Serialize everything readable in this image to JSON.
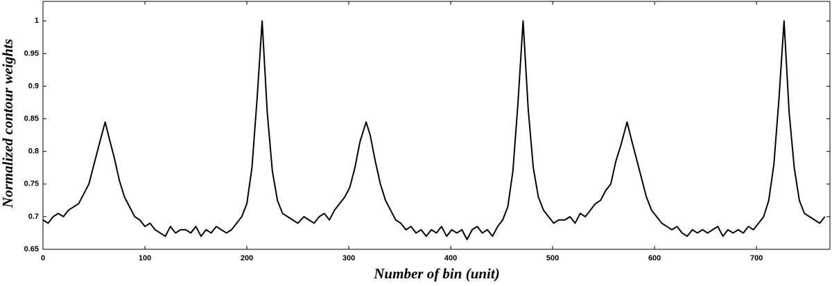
{
  "chart_data": {
    "type": "line",
    "x_label": "Number of bin (unit)",
    "y_label": "Normalized contour weights",
    "x": [
      0,
      5,
      10,
      15,
      20,
      25,
      30,
      35,
      40,
      45,
      50,
      55,
      61,
      65,
      70,
      75,
      80,
      85,
      90,
      95,
      100,
      105,
      110,
      115,
      120,
      125,
      130,
      135,
      140,
      145,
      150,
      155,
      160,
      165,
      170,
      175,
      180,
      185,
      190,
      195,
      200,
      205,
      210,
      215,
      220,
      225,
      230,
      235,
      240,
      245,
      250,
      256,
      261,
      266,
      271,
      276,
      281,
      286,
      291,
      296,
      301,
      306,
      311,
      317,
      321,
      326,
      331,
      336,
      341,
      346,
      351,
      356,
      361,
      366,
      371,
      376,
      381,
      386,
      391,
      396,
      401,
      406,
      411,
      416,
      421,
      426,
      431,
      436,
      441,
      446,
      451,
      456,
      461,
      466,
      471,
      476,
      481,
      486,
      491,
      496,
      501,
      506,
      512,
      517,
      522,
      527,
      532,
      537,
      542,
      547,
      552,
      557,
      562,
      567,
      573,
      577,
      582,
      587,
      592,
      597,
      602,
      607,
      612,
      617,
      622,
      627,
      632,
      637,
      642,
      647,
      652,
      657,
      662,
      667,
      672,
      677,
      682,
      687,
      692,
      697,
      702,
      707,
      712,
      717,
      722,
      727,
      732,
      737,
      742,
      747,
      752,
      757,
      762,
      767
    ],
    "series": [
      {
        "color": "#000000",
        "values": [
          0.695,
          0.69,
          0.7,
          0.705,
          0.7,
          0.71,
          0.715,
          0.72,
          0.735,
          0.75,
          0.78,
          0.81,
          0.845,
          0.82,
          0.79,
          0.755,
          0.73,
          0.715,
          0.7,
          0.695,
          0.685,
          0.69,
          0.68,
          0.675,
          0.67,
          0.685,
          0.675,
          0.68,
          0.68,
          0.675,
          0.685,
          0.67,
          0.68,
          0.675,
          0.685,
          0.68,
          0.675,
          0.68,
          0.69,
          0.7,
          0.72,
          0.775,
          0.88,
          1.0,
          0.86,
          0.77,
          0.725,
          0.705,
          0.7,
          0.695,
          0.69,
          0.7,
          0.695,
          0.69,
          0.7,
          0.705,
          0.695,
          0.71,
          0.72,
          0.73,
          0.745,
          0.775,
          0.815,
          0.845,
          0.825,
          0.785,
          0.75,
          0.725,
          0.71,
          0.695,
          0.69,
          0.68,
          0.685,
          0.675,
          0.68,
          0.67,
          0.68,
          0.675,
          0.685,
          0.67,
          0.68,
          0.675,
          0.68,
          0.665,
          0.68,
          0.685,
          0.675,
          0.68,
          0.67,
          0.685,
          0.695,
          0.715,
          0.77,
          0.875,
          1.0,
          0.865,
          0.775,
          0.73,
          0.71,
          0.7,
          0.69,
          0.695,
          0.695,
          0.7,
          0.69,
          0.705,
          0.7,
          0.71,
          0.72,
          0.725,
          0.74,
          0.75,
          0.785,
          0.81,
          0.845,
          0.82,
          0.79,
          0.76,
          0.73,
          0.71,
          0.7,
          0.69,
          0.685,
          0.68,
          0.685,
          0.675,
          0.67,
          0.68,
          0.675,
          0.68,
          0.675,
          0.68,
          0.685,
          0.67,
          0.68,
          0.675,
          0.68,
          0.675,
          0.685,
          0.68,
          0.69,
          0.7,
          0.725,
          0.78,
          0.88,
          1.0,
          0.86,
          0.775,
          0.725,
          0.705,
          0.7,
          0.695,
          0.69,
          0.7
        ]
      }
    ],
    "xlim": [
      0,
      772
    ],
    "xticks": [
      0,
      100,
      200,
      300,
      400,
      500,
      600,
      700
    ],
    "ylim": [
      0.65,
      1.03
    ],
    "yticks": [
      0.65,
      0.7,
      0.75,
      0.8,
      0.85,
      0.9,
      0.95,
      1
    ],
    "grid": false
  }
}
